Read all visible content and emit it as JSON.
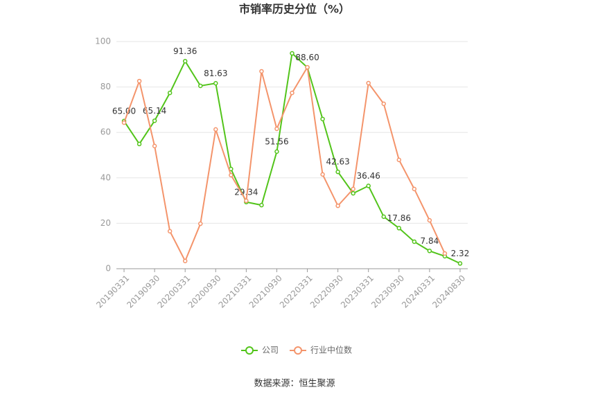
{
  "chart_data": {
    "type": "line",
    "title": "市销率历史分位（%）",
    "categories": [
      "20190331",
      null,
      "20190930",
      null,
      "20200331",
      null,
      "20200930",
      null,
      "20210331",
      null,
      "20210930",
      null,
      "20220331",
      null,
      "20220930",
      null,
      "20230331",
      null,
      "20230930",
      null,
      "20240331",
      null,
      "20240830"
    ],
    "series": [
      {
        "name": "公司",
        "color": "#52c41a",
        "values": [
          65.0,
          54.9,
          65.14,
          77.4,
          91.36,
          80.5,
          81.63,
          43.9,
          29.34,
          28.0,
          51.56,
          94.8,
          88.6,
          65.9,
          42.63,
          33.2,
          36.46,
          22.9,
          17.86,
          11.9,
          7.84,
          5.5,
          2.32
        ],
        "value_labels": [
          "65.00",
          null,
          "65.14",
          null,
          "91.36",
          null,
          "81.63",
          null,
          "29.34",
          null,
          "51.56",
          null,
          "88.60",
          null,
          "42.63",
          null,
          "36.46",
          null,
          "17.86",
          null,
          "7.84",
          null,
          "2.32"
        ]
      },
      {
        "name": "行业中位数",
        "color": "#f4946b",
        "values": [
          64.3,
          82.6,
          54.0,
          16.5,
          3.4,
          19.8,
          61.3,
          41.2,
          29.9,
          86.9,
          61.6,
          77.4,
          88.7,
          41.5,
          27.7,
          35.1,
          81.7,
          72.6,
          47.9,
          35.1,
          21.3,
          6.7,
          null
        ]
      }
    ],
    "ylim": [
      0,
      100
    ],
    "yticks": [
      0,
      20,
      40,
      60,
      80,
      100
    ],
    "grid": true,
    "source": "数据来源：恒生聚源"
  }
}
